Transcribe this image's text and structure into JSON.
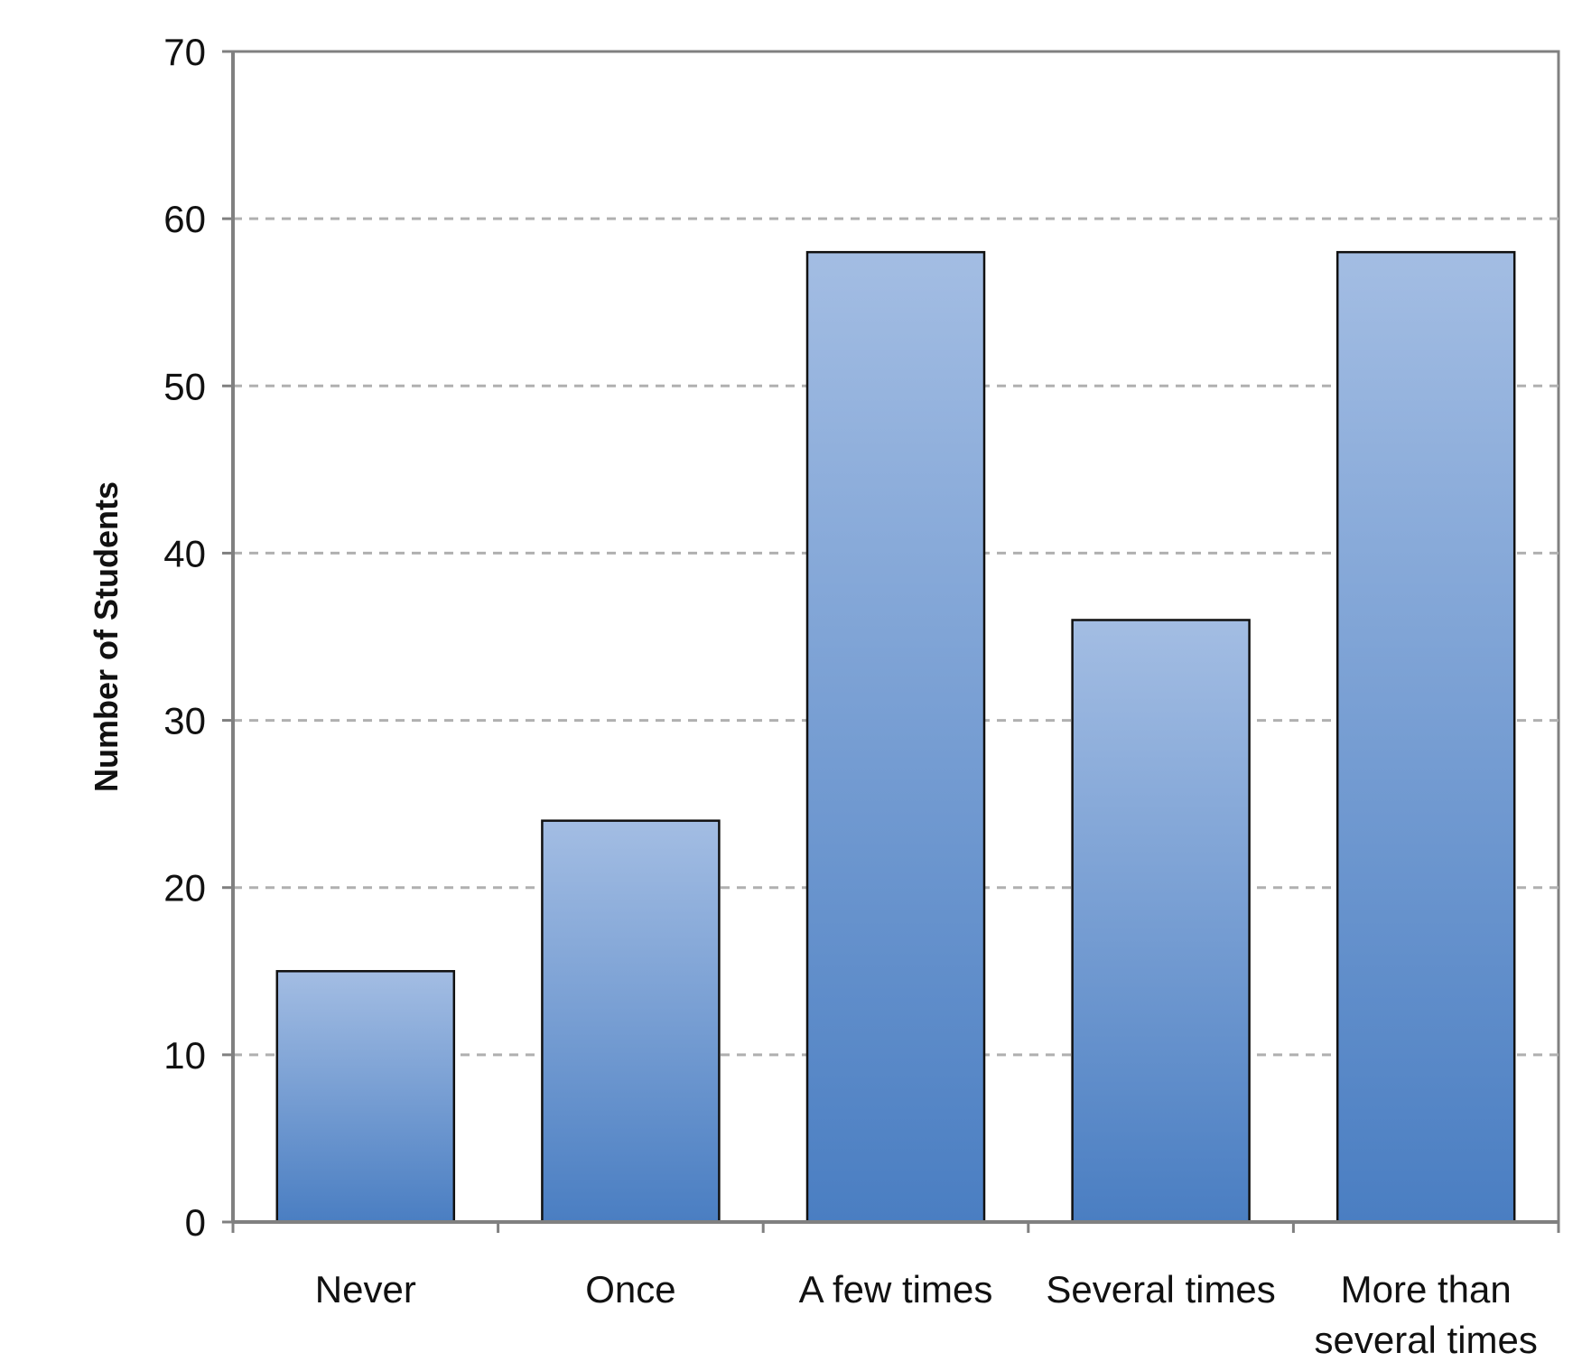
{
  "chart_data": {
    "type": "bar",
    "title": "",
    "xlabel": "",
    "ylabel": "Number of Students",
    "categories": [
      [
        "Never"
      ],
      [
        "Once"
      ],
      [
        "A few times"
      ],
      [
        "Several times"
      ],
      [
        "More than",
        "several times"
      ]
    ],
    "values": [
      15,
      24,
      58,
      36,
      58
    ],
    "ylim": [
      0,
      70
    ],
    "yticks": [
      0,
      10,
      20,
      30,
      40,
      50,
      60,
      70
    ],
    "grid": "horizontal dashed",
    "legend": "none",
    "colors": {
      "bar_top": "#a3bde3",
      "bar_bottom": "#4a7ec2",
      "bar_stroke": "#111111",
      "grid": "#b0b0b0",
      "axis": "#808080"
    }
  }
}
